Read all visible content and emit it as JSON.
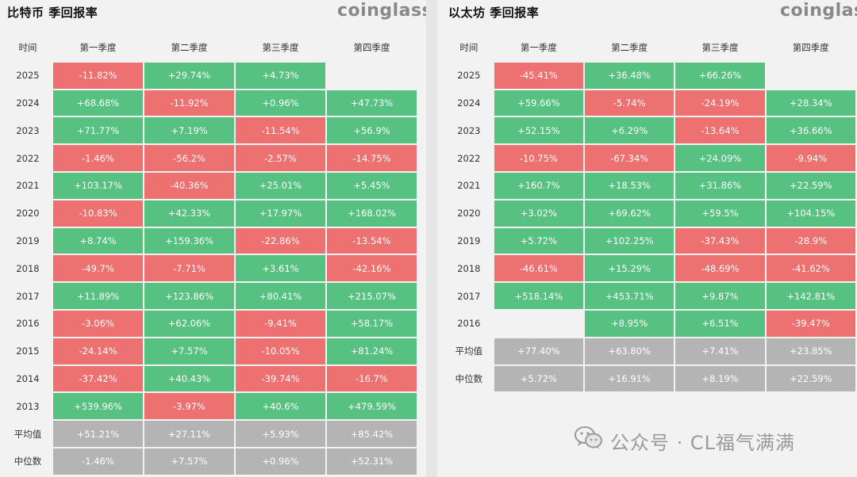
{
  "btc": {
    "title": "比特币 季回报率",
    "brand": "coinglass",
    "headers": [
      "时间",
      "第一季度",
      "第二季度",
      "第三季度",
      "第四季度"
    ],
    "rows": [
      {
        "label": "2025",
        "cells": [
          "-11.82%",
          "+29.74%",
          "+4.73%",
          ""
        ]
      },
      {
        "label": "2024",
        "cells": [
          "+68.68%",
          "-11.92%",
          "+0.96%",
          "+47.73%"
        ]
      },
      {
        "label": "2023",
        "cells": [
          "+71.77%",
          "+7.19%",
          "-11.54%",
          "+56.9%"
        ]
      },
      {
        "label": "2022",
        "cells": [
          "-1.46%",
          "-56.2%",
          "-2.57%",
          "-14.75%"
        ]
      },
      {
        "label": "2021",
        "cells": [
          "+103.17%",
          "-40.36%",
          "+25.01%",
          "+5.45%"
        ]
      },
      {
        "label": "2020",
        "cells": [
          "-10.83%",
          "+42.33%",
          "+17.97%",
          "+168.02%"
        ]
      },
      {
        "label": "2019",
        "cells": [
          "+8.74%",
          "+159.36%",
          "-22.86%",
          "-13.54%"
        ]
      },
      {
        "label": "2018",
        "cells": [
          "-49.7%",
          "-7.71%",
          "+3.61%",
          "-42.16%"
        ]
      },
      {
        "label": "2017",
        "cells": [
          "+11.89%",
          "+123.86%",
          "+80.41%",
          "+215.07%"
        ]
      },
      {
        "label": "2016",
        "cells": [
          "-3.06%",
          "+62.06%",
          "-9.41%",
          "+58.17%"
        ]
      },
      {
        "label": "2015",
        "cells": [
          "-24.14%",
          "+7.57%",
          "-10.05%",
          "+81.24%"
        ]
      },
      {
        "label": "2014",
        "cells": [
          "-37.42%",
          "+40.43%",
          "-39.74%",
          "-16.7%"
        ]
      },
      {
        "label": "2013",
        "cells": [
          "+539.96%",
          "-3.97%",
          "+40.6%",
          "+479.59%"
        ]
      },
      {
        "label": "平均值",
        "stat": true,
        "cells": [
          "+51.21%",
          "+27.11%",
          "+5.93%",
          "+85.42%"
        ]
      },
      {
        "label": "中位数",
        "stat": true,
        "cells": [
          "-1.46%",
          "+7.57%",
          "+0.96%",
          "+52.31%"
        ]
      }
    ]
  },
  "eth": {
    "title": "以太坊 季回报率",
    "brand": "coinglass",
    "headers": [
      "时间",
      "第一季度",
      "第二季度",
      "第三季度",
      "第四季度"
    ],
    "rows": [
      {
        "label": "2025",
        "cells": [
          "-45.41%",
          "+36.48%",
          "+66.26%",
          ""
        ]
      },
      {
        "label": "2024",
        "cells": [
          "+59.66%",
          "-5.74%",
          "-24.19%",
          "+28.34%"
        ]
      },
      {
        "label": "2023",
        "cells": [
          "+52.15%",
          "+6.29%",
          "-13.64%",
          "+36.66%"
        ]
      },
      {
        "label": "2022",
        "cells": [
          "-10.75%",
          "-67.34%",
          "+24.09%",
          "-9.94%"
        ]
      },
      {
        "label": "2021",
        "cells": [
          "+160.7%",
          "+18.53%",
          "+31.86%",
          "+22.59%"
        ]
      },
      {
        "label": "2020",
        "cells": [
          "+3.02%",
          "+69.62%",
          "+59.5%",
          "+104.15%"
        ]
      },
      {
        "label": "2019",
        "cells": [
          "+5.72%",
          "+102.25%",
          "-37.43%",
          "-28.9%"
        ]
      },
      {
        "label": "2018",
        "cells": [
          "-46.61%",
          "+15.29%",
          "-48.69%",
          "-41.62%"
        ]
      },
      {
        "label": "2017",
        "cells": [
          "+518.14%",
          "+453.71%",
          "+9.87%",
          "+142.81%"
        ]
      },
      {
        "label": "2016",
        "cells": [
          "",
          "+8.95%",
          "+6.51%",
          "-39.47%"
        ]
      },
      {
        "label": "平均值",
        "stat": true,
        "cells": [
          "+77.40%",
          "+63.80%",
          "+7.41%",
          "+23.85%"
        ]
      },
      {
        "label": "中位数",
        "stat": true,
        "cells": [
          "+5.72%",
          "+16.91%",
          "+8.19%",
          "+22.59%"
        ]
      }
    ]
  },
  "watermark": {
    "text": "公众号 · CL福气满满",
    "icon": "wechat-icon"
  },
  "colors": {
    "positive": "#57c182",
    "negative": "#ec7170",
    "stat": "#b4b4b4"
  }
}
